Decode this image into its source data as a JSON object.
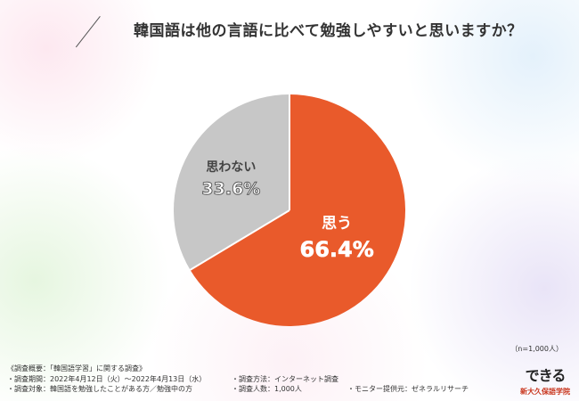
{
  "title": "韓国語は他の言語に比べて勉強しやすいと思いますか？",
  "chart_data": {
    "type": "pie",
    "slices": [
      {
        "label": "思う",
        "value": 66.4,
        "display": "66.4%",
        "color": "#e95a2b"
      },
      {
        "label": "思わない",
        "value": 33.6,
        "display": "33.6%",
        "color": "#c7c7c7"
      }
    ]
  },
  "sample_note": "（n=1,000人）",
  "footer": {
    "heading": "《調査概要：「韓国語学習」に関する調査》",
    "period": "・調査期間：2022年4月12日（火）〜2022年4月13日（水）",
    "method": "・調査方法：インターネット調査",
    "target": "・調査対象：韓国語を勉強したことがある方／勉強中の方",
    "count": "・調査人数：1,000人",
    "monitor": "・モニター提供元：ゼネラルリサーチ"
  },
  "logo": {
    "mark": "できる",
    "school": "新大久保語学院"
  }
}
